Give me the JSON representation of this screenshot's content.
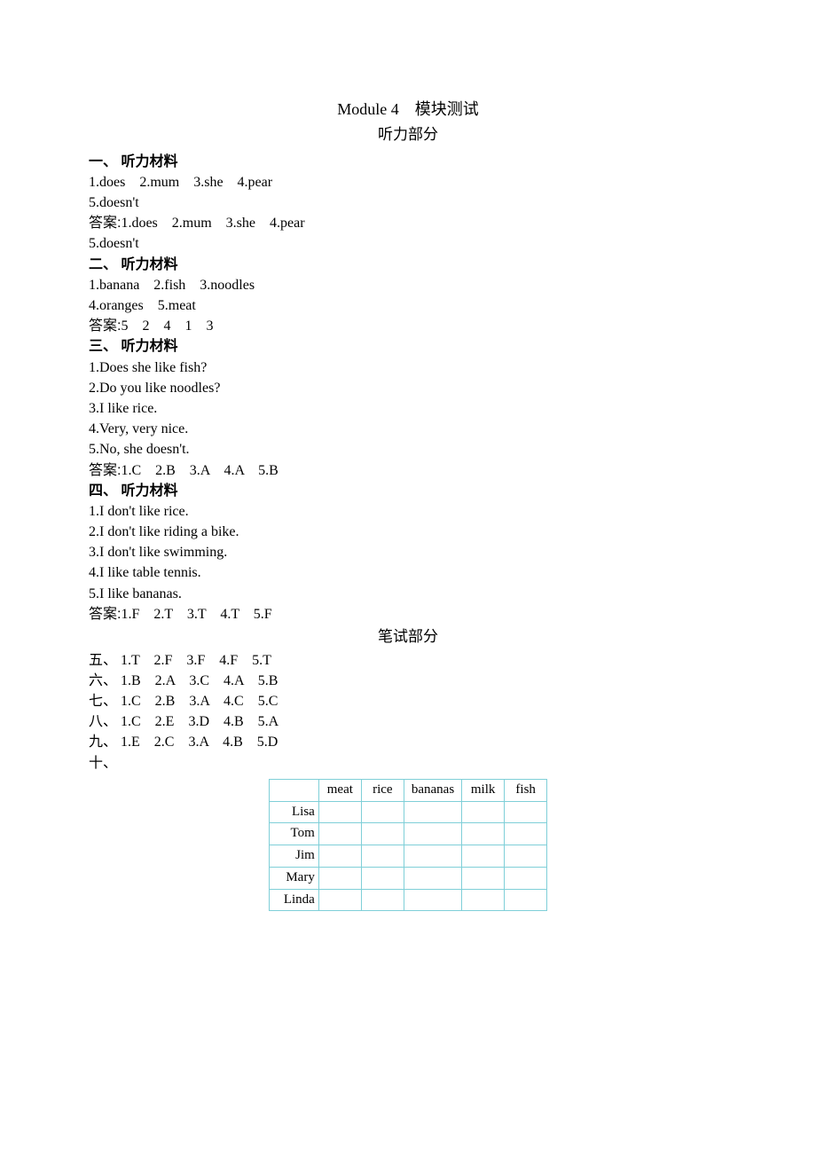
{
  "title": {
    "main": "Module 4　模块测试",
    "listening": "听力部分",
    "written": "笔试部分"
  },
  "section1": {
    "header": "一、 听力材料",
    "lines": [
      "1.does　2.mum　3.she　4.pear",
      "5.doesn't"
    ],
    "answerPrefix": "答案:",
    "answerLines": [
      "1.does　2.mum　3.she　4.pear",
      "5.doesn't"
    ]
  },
  "section2": {
    "header": "二、 听力材料",
    "lines": [
      "1.banana　2.fish　3.noodles",
      "4.oranges　5.meat"
    ],
    "answerPrefix": "答案:",
    "answerLines": [
      "5　2　4　1　3"
    ]
  },
  "section3": {
    "header": "三、 听力材料",
    "lines": [
      "1.Does she like fish?",
      "2.Do you like noodles?",
      "3.I like rice.",
      "4.Very, very nice.",
      "5.No, she doesn't."
    ],
    "answerPrefix": "答案:",
    "answerLines": [
      "1.C　2.B　3.A　4.A　5.B"
    ]
  },
  "section4": {
    "header": "四、 听力材料",
    "lines": [
      "1.I don't like rice.",
      "2.I don't like riding a bike.",
      "3.I don't like swimming.",
      "4.I like table tennis.",
      "5.I like bananas."
    ],
    "answerPrefix": "答案:",
    "answerLines": [
      "1.F　2.T　3.T　4.T　5.F"
    ]
  },
  "written5": "五、 1.T　2.F　3.F　4.F　5.T",
  "written6": "六、 1.B　2.A　3.C　4.A　5.B",
  "written7": "七、 1.C　2.B　3.A　4.C　5.C",
  "written8": "八、 1.C　2.E　3.D　4.B　5.A",
  "written9": "九、 1.E　2.C　3.A　4.B　5.D",
  "written10Header": "十、",
  "table": {
    "borderColor": "#7fcfd8",
    "columns": [
      "meat",
      "rice",
      "bananas",
      "milk",
      "fish"
    ],
    "rows": [
      "Lisa",
      "Tom",
      "Jim",
      "Mary",
      "Linda"
    ]
  }
}
